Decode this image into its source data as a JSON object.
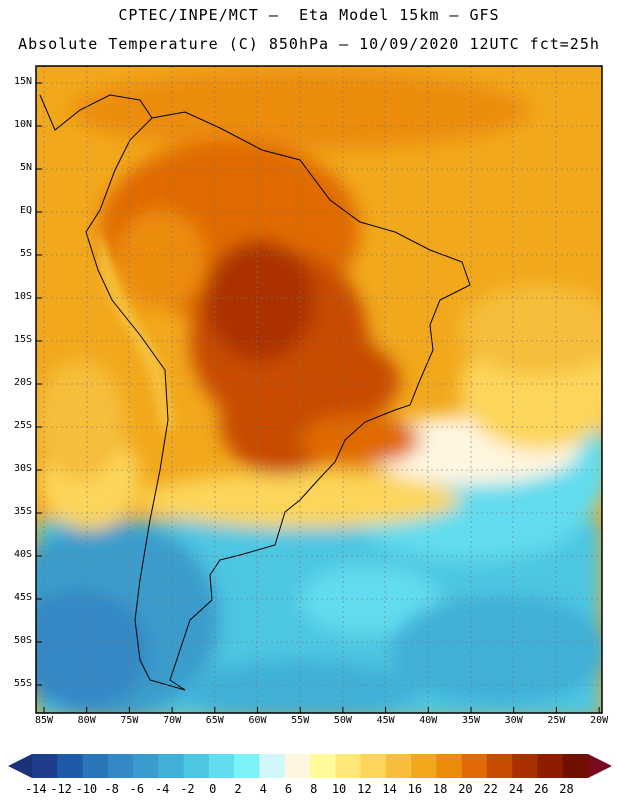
{
  "header": {
    "line1": "CPTEC/INPE/MCT –  Eta Model 15km – GFS",
    "line2": "Absolute Temperature (C) 850hPa – 10/09/2020 12UTC fct=25h"
  },
  "map": {
    "lat_labels": [
      "15N",
      "10N",
      "5N",
      "EQ",
      "5S",
      "10S",
      "15S",
      "20S",
      "25S",
      "30S",
      "35S",
      "40S",
      "45S",
      "50S",
      "55S"
    ],
    "lon_labels": [
      "85W",
      "80W",
      "75W",
      "70W",
      "65W",
      "60W",
      "55W",
      "50W",
      "45W",
      "40W",
      "35W",
      "30W",
      "25W",
      "20W"
    ]
  },
  "colorbar": {
    "labels": [
      "-14",
      "-12",
      "-10",
      "-8",
      "-6",
      "-4",
      "-2",
      "0",
      "2",
      "4",
      "6",
      "8",
      "10",
      "12",
      "14",
      "16",
      "18",
      "20",
      "22",
      "24",
      "26",
      "28"
    ],
    "colors": [
      "#1e3d8c",
      "#1f5aa6",
      "#2a74b8",
      "#3488c4",
      "#3a9ccc",
      "#40b0d8",
      "#4ec6e2",
      "#62dcee",
      "#7af2f8",
      "#d2f7fa",
      "#fff6e0",
      "#fffb9a",
      "#ffe878",
      "#fcd65a",
      "#f6be3a",
      "#f2a81c",
      "#ec8c0c",
      "#e06a04",
      "#c84c00",
      "#ab3000",
      "#8e1c00",
      "#701000"
    ],
    "under_color": "#1b3278",
    "over_color": "#7a0a20"
  }
}
